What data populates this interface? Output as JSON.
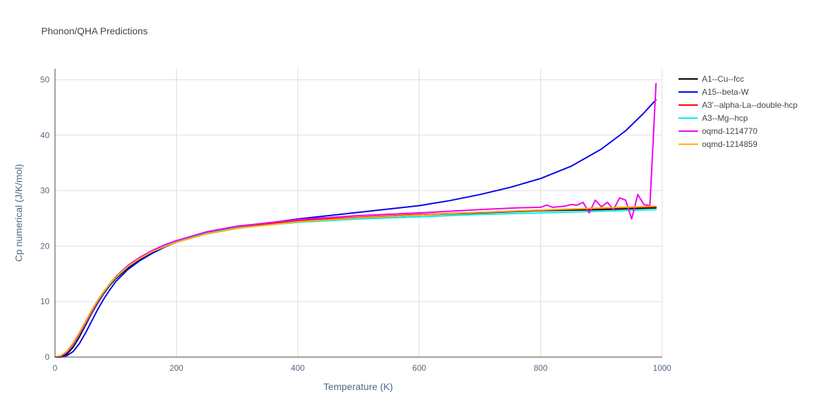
{
  "chart_data": {
    "type": "line",
    "title": "Phonon/QHA Predictions",
    "xlabel": "Temperature (K)",
    "ylabel": "Cp numerical (J/K/mol)",
    "xlim": [
      0,
      1000
    ],
    "ylim": [
      0,
      52
    ],
    "x_ticks": [
      0,
      200,
      400,
      600,
      800,
      1000
    ],
    "y_ticks": [
      0,
      10,
      20,
      30,
      40,
      50
    ],
    "grid": true,
    "legend_position": "top-right",
    "series": [
      {
        "name": "A1--Cu--fcc",
        "color": "#000000",
        "x": [
          0,
          10,
          20,
          30,
          40,
          50,
          60,
          70,
          80,
          90,
          100,
          120,
          140,
          160,
          180,
          200,
          250,
          300,
          400,
          500,
          600,
          700,
          800,
          900,
          990
        ],
        "y": [
          0,
          0.1,
          0.6,
          1.8,
          3.6,
          5.7,
          7.8,
          9.7,
          11.4,
          12.9,
          14.1,
          16.1,
          17.6,
          18.9,
          19.9,
          20.8,
          22.4,
          23.4,
          24.5,
          25.1,
          25.6,
          26.0,
          26.4,
          26.6,
          26.9
        ]
      },
      {
        "name": "A15--beta-W",
        "color": "#0000ee",
        "x": [
          0,
          10,
          20,
          30,
          40,
          50,
          60,
          70,
          80,
          90,
          100,
          120,
          140,
          160,
          180,
          200,
          250,
          300,
          400,
          500,
          600,
          650,
          700,
          750,
          800,
          850,
          900,
          940,
          970,
          990
        ],
        "y": [
          0,
          0.0,
          0.3,
          1.0,
          2.4,
          4.3,
          6.4,
          8.5,
          10.4,
          12.1,
          13.6,
          15.8,
          17.4,
          18.7,
          19.8,
          20.7,
          22.3,
          23.4,
          24.9,
          26.1,
          27.3,
          28.2,
          29.3,
          30.6,
          32.2,
          34.4,
          37.5,
          40.8,
          44.0,
          46.4
        ]
      },
      {
        "name": "A3'--alpha-La--double-hcp",
        "color": "#ff0000",
        "x": [
          0,
          10,
          20,
          30,
          40,
          50,
          60,
          70,
          80,
          90,
          100,
          120,
          140,
          160,
          180,
          200,
          250,
          300,
          400,
          500,
          600,
          700,
          800,
          900,
          990
        ],
        "y": [
          0,
          0.2,
          0.9,
          2.3,
          4.1,
          6.1,
          8.1,
          10.0,
          11.7,
          13.2,
          14.4,
          16.4,
          17.9,
          19.1,
          20.1,
          20.9,
          22.5,
          23.5,
          24.6,
          25.2,
          25.7,
          26.1,
          26.5,
          26.8,
          27.1
        ]
      },
      {
        "name": "A3--Mg--hcp",
        "color": "#00eeee",
        "x": [
          0,
          10,
          20,
          30,
          40,
          50,
          60,
          70,
          80,
          90,
          100,
          120,
          140,
          160,
          180,
          200,
          250,
          300,
          400,
          500,
          600,
          700,
          800,
          900,
          990
        ],
        "y": [
          0,
          0.2,
          0.9,
          2.2,
          4.0,
          6.0,
          8.0,
          9.9,
          11.6,
          13.1,
          14.3,
          16.3,
          17.8,
          19.0,
          20.0,
          20.8,
          22.3,
          23.3,
          24.3,
          24.9,
          25.3,
          25.7,
          26.0,
          26.3,
          26.6
        ]
      },
      {
        "name": "oqmd-1214770",
        "color": "#ee00ee",
        "x": [
          0,
          10,
          20,
          30,
          40,
          50,
          60,
          70,
          80,
          90,
          100,
          120,
          140,
          160,
          180,
          200,
          250,
          300,
          400,
          500,
          600,
          700,
          760,
          800,
          810,
          820,
          840,
          850,
          860,
          870,
          880,
          890,
          900,
          910,
          920,
          930,
          940,
          950,
          960,
          970,
          980,
          990
        ],
        "y": [
          0,
          0.2,
          0.9,
          2.3,
          4.1,
          6.1,
          8.1,
          10.0,
          11.7,
          13.2,
          14.5,
          16.5,
          18.0,
          19.2,
          20.2,
          21.0,
          22.6,
          23.6,
          24.8,
          25.5,
          26.0,
          26.6,
          26.9,
          27.0,
          27.4,
          27.0,
          27.2,
          27.5,
          27.4,
          27.9,
          26.0,
          28.3,
          27.1,
          27.9,
          26.6,
          28.7,
          28.3,
          24.9,
          29.3,
          27.5,
          27.3,
          49.3
        ]
      },
      {
        "name": "oqmd-1214859",
        "color": "#ffb000",
        "x": [
          0,
          10,
          20,
          30,
          40,
          50,
          60,
          70,
          80,
          90,
          100,
          120,
          140,
          160,
          180,
          200,
          250,
          300,
          400,
          500,
          600,
          700,
          800,
          900,
          990
        ],
        "y": [
          0,
          0.3,
          1.1,
          2.6,
          4.4,
          6.4,
          8.4,
          10.2,
          11.8,
          13.2,
          14.4,
          16.3,
          17.8,
          19.0,
          19.9,
          20.7,
          22.2,
          23.2,
          24.4,
          25.1,
          25.6,
          26.1,
          26.5,
          26.9,
          27.2
        ]
      }
    ]
  }
}
